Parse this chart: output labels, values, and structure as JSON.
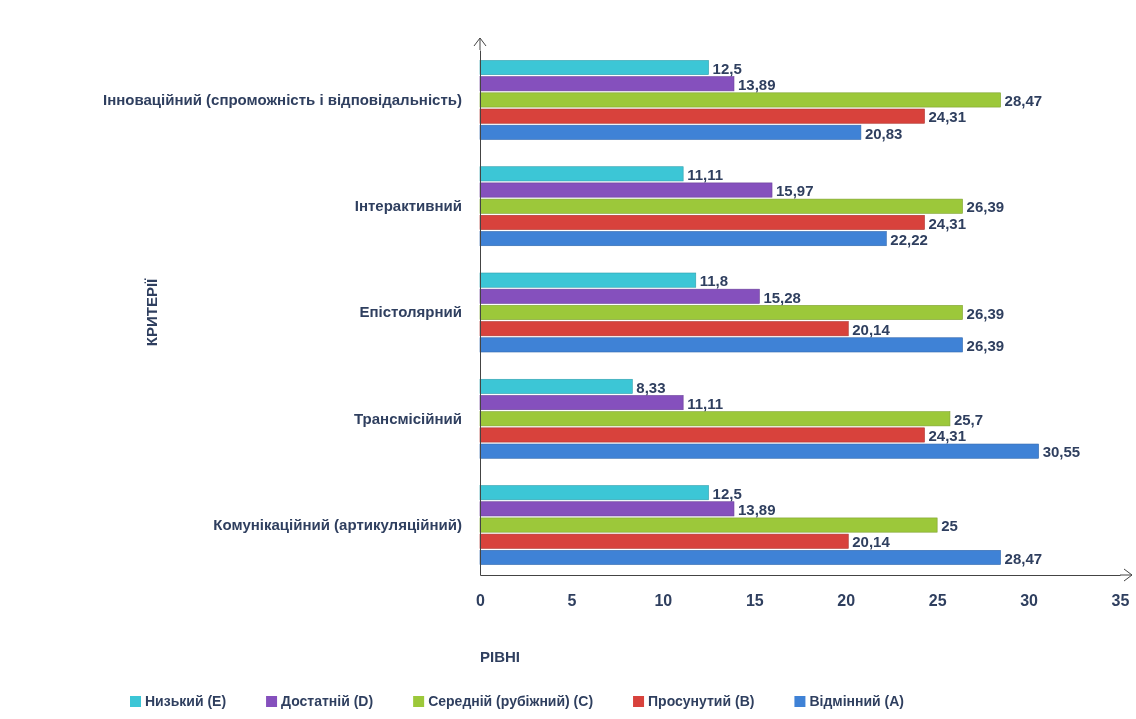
{
  "chart_data": {
    "type": "bar",
    "orientation": "horizontal",
    "xlabel": "РІВНІ",
    "ylabel": "КРИТЕРІЇ",
    "categories": [
      "Інноваційний (спроможність і відповідальність)",
      "Інтерактивний",
      "Епістолярний",
      "Трансмісійний",
      "Комунікаційний (артикуляційний)"
    ],
    "series": [
      {
        "name": "Низький (E)",
        "color": "#3cc6d6",
        "values": [
          12.5,
          11.11,
          11.8,
          8.33,
          12.5
        ],
        "value_labels": [
          "12,5",
          "11,11",
          "11,8",
          "8,33",
          "12,5"
        ]
      },
      {
        "name": "Достатній (D)",
        "color": "#8550bd",
        "values": [
          13.89,
          15.97,
          15.28,
          11.11,
          13.89
        ],
        "value_labels": [
          "13,89",
          "15,97",
          "15,28",
          "11,11",
          "13,89"
        ]
      },
      {
        "name": "Середній (рубіжний) (C)",
        "color": "#9cc83a",
        "values": [
          28.47,
          26.39,
          26.39,
          25.7,
          25
        ],
        "value_labels": [
          "28,47",
          "26,39",
          "26,39",
          "25,7",
          "25"
        ]
      },
      {
        "name": "Просунутий (B)",
        "color": "#d8423c",
        "values": [
          24.31,
          24.31,
          20.14,
          24.31,
          20.14
        ],
        "value_labels": [
          "24,31",
          "24,31",
          "20,14",
          "24,31",
          "20,14"
        ]
      },
      {
        "name": "Відмінний (A)",
        "color": "#3f82d6",
        "values": [
          20.83,
          22.22,
          26.39,
          30.55,
          28.47
        ],
        "value_labels": [
          "20,83",
          "22,22",
          "26,39",
          "30,55",
          "28,47"
        ]
      }
    ],
    "xlim": [
      0,
      35
    ],
    "xticks": [
      0,
      5,
      10,
      15,
      20,
      25,
      30,
      35
    ],
    "grid": false,
    "legend": "bottom"
  }
}
